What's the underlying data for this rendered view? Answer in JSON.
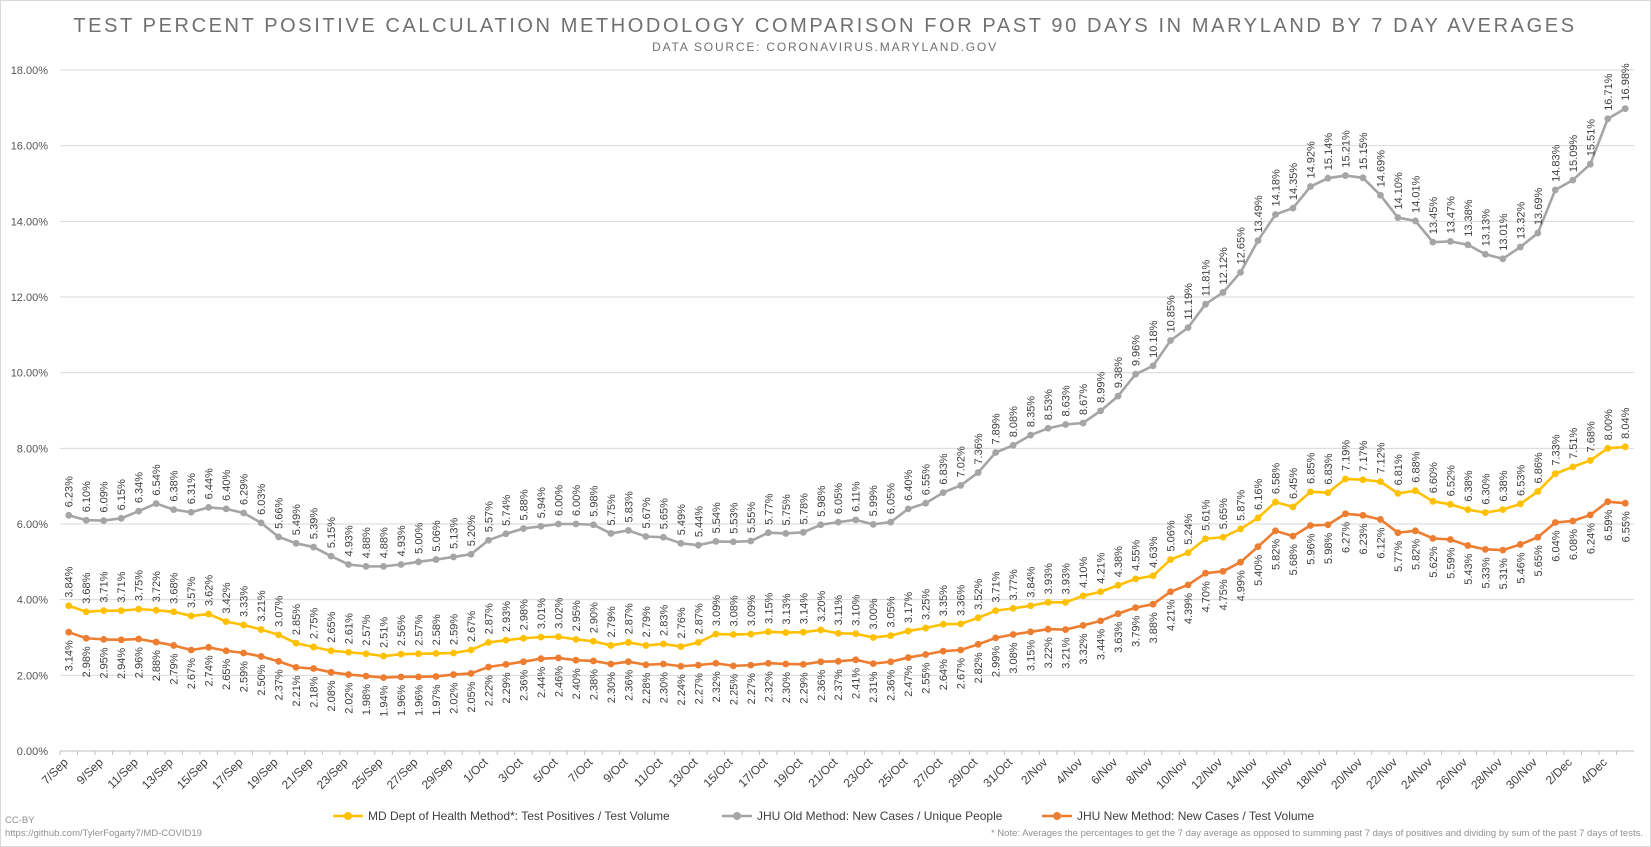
{
  "chart_data": {
    "type": "line",
    "title": "TEST PERCENT POSITIVE CALCULATION METHODOLOGY COMPARISON FOR PAST 90 DAYS IN MARYLAND BY 7 DAY AVERAGES",
    "subtitle": "DATA SOURCE: CORONAVIRUS.MARYLAND.GOV",
    "ylim": [
      0,
      18
    ],
    "yticks": [
      "0.00%",
      "2.00%",
      "4.00%",
      "6.00%",
      "8.00%",
      "10.00%",
      "12.00%",
      "14.00%",
      "16.00%",
      "18.00%"
    ],
    "grid": true,
    "legend_position": "bottom",
    "x_tick_labels": [
      "7/Sep",
      "9/Sep",
      "11/Sep",
      "13/Sep",
      "15/Sep",
      "17/Sep",
      "19/Sep",
      "21/Sep",
      "23/Sep",
      "25/Sep",
      "27/Sep",
      "29/Sep",
      "1/Oct",
      "3/Oct",
      "5/Oct",
      "7/Oct",
      "9/Oct",
      "11/Oct",
      "13/Oct",
      "15/Oct",
      "17/Oct",
      "19/Oct",
      "21/Oct",
      "23/Oct",
      "25/Oct",
      "27/Oct",
      "29/Oct",
      "31/Oct",
      "2/Nov",
      "4/Nov",
      "6/Nov",
      "8/Nov",
      "10/Nov",
      "12/Nov",
      "14/Nov",
      "16/Nov",
      "18/Nov",
      "20/Nov",
      "22/Nov",
      "24/Nov",
      "26/Nov",
      "28/Nov",
      "30/Nov",
      "2/Dec",
      "4/Dec"
    ],
    "series": [
      {
        "name": "MD Dept of Health Method*: Test Positives / Test Volume",
        "color": "#FFC000",
        "labels": [
          "3.84%",
          "3.68%",
          "3.71%",
          "3.71%",
          "3.75%",
          "3.72%",
          "3.68%",
          "3.57%",
          "3.62%",
          "3.42%",
          "3.33%",
          "3.21%",
          "3.07%",
          "2.85%",
          "2.75%",
          "2.65%",
          "2.61%",
          "2.57%",
          "2.51%",
          "2.56%",
          "2.57%",
          "2.58%",
          "2.59%",
          "2.67%",
          "2.87%",
          "2.93%",
          "2.98%",
          "3.01%",
          "3.02%",
          "2.95%",
          "2.90%",
          "2.79%",
          "2.87%",
          "2.79%",
          "2.83%",
          "2.76%",
          "2.87%",
          "3.09%",
          "3.08%",
          "3.09%",
          "3.15%",
          "3.13%",
          "3.14%",
          "3.20%",
          "3.11%",
          "3.10%",
          "3.00%",
          "3.05%",
          "3.17%",
          "3.25%",
          "3.35%",
          "3.36%",
          "3.52%",
          "3.71%",
          "3.77%",
          "3.84%",
          "3.93%",
          "3.93%",
          "4.10%",
          "4.21%",
          "4.38%",
          "4.55%",
          "4.63%",
          "5.06%",
          "5.24%",
          "5.61%",
          "5.65%",
          "5.87%",
          "6.16%",
          "6.58%",
          "6.45%",
          "6.85%",
          "6.83%",
          "7.19%",
          "7.17%",
          "7.12%",
          "6.81%",
          "6.88%",
          "6.60%",
          "6.52%",
          "6.38%",
          "6.30%",
          "6.38%",
          "6.53%",
          "6.86%",
          "7.33%",
          "7.51%",
          "7.68%",
          "8.00%",
          "8.04%"
        ]
      },
      {
        "name": "JHU Old Method: New Cases / Unique People",
        "color": "#A5A5A5",
        "labels": [
          "6.23%",
          "6.10%",
          "6.09%",
          "6.15%",
          "6.34%",
          "6.54%",
          "6.38%",
          "6.31%",
          "6.44%",
          "6.40%",
          "6.29%",
          "6.03%",
          "5.66%",
          "5.49%",
          "5.39%",
          "5.15%",
          "4.93%",
          "4.88%",
          "4.88%",
          "4.93%",
          "5.00%",
          "5.06%",
          "5.13%",
          "5.20%",
          "5.57%",
          "5.74%",
          "5.88%",
          "5.94%",
          "6.00%",
          "6.00%",
          "5.98%",
          "5.75%",
          "5.83%",
          "5.67%",
          "5.65%",
          "5.49%",
          "5.44%",
          "5.54%",
          "5.53%",
          "5.55%",
          "5.77%",
          "5.75%",
          "5.78%",
          "5.98%",
          "6.05%",
          "6.11%",
          "5.99%",
          "6.05%",
          "6.40%",
          "6.55%",
          "6.83%",
          "7.02%",
          "7.36%",
          "7.89%",
          "8.08%",
          "8.35%",
          "8.53%",
          "8.63%",
          "8.67%",
          "8.99%",
          "9.38%",
          "9.96%",
          "10.18%",
          "10.85%",
          "11.19%",
          "11.81%",
          "12.12%",
          "12.65%",
          "13.49%",
          "14.18%",
          "14.35%",
          "14.92%",
          "15.14%",
          "15.21%",
          "15.15%",
          "14.69%",
          "14.10%",
          "14.01%",
          "13.45%",
          "13.47%",
          "13.38%",
          "13.13%",
          "13.01%",
          "13.32%",
          "13.69%",
          "14.83%",
          "15.09%",
          "15.51%",
          "16.71%",
          "16.98%"
        ]
      },
      {
        "name": "JHU New Method: New Cases / Test Volume",
        "color": "#ED7D31",
        "labels": [
          "3.14%",
          "2.98%",
          "2.95%",
          "2.94%",
          "2.96%",
          "2.88%",
          "2.79%",
          "2.67%",
          "2.74%",
          "2.65%",
          "2.59%",
          "2.50%",
          "2.37%",
          "2.21%",
          "2.18%",
          "2.08%",
          "2.02%",
          "1.98%",
          "1.94%",
          "1.96%",
          "1.96%",
          "1.97%",
          "2.02%",
          "2.05%",
          "2.22%",
          "2.29%",
          "2.36%",
          "2.44%",
          "2.46%",
          "2.40%",
          "2.38%",
          "2.30%",
          "2.36%",
          "2.28%",
          "2.30%",
          "2.24%",
          "2.27%",
          "2.32%",
          "2.25%",
          "2.27%",
          "2.32%",
          "2.30%",
          "2.29%",
          "2.36%",
          "2.37%",
          "2.41%",
          "2.31%",
          "2.36%",
          "2.47%",
          "2.55%",
          "2.64%",
          "2.67%",
          "2.82%",
          "2.99%",
          "3.08%",
          "3.15%",
          "3.22%",
          "3.21%",
          "3.32%",
          "3.44%",
          "3.63%",
          "3.79%",
          "3.88%",
          "4.21%",
          "4.39%",
          "4.70%",
          "4.75%",
          "4.99%",
          "5.40%",
          "5.82%",
          "5.68%",
          "5.96%",
          "5.98%",
          "6.27%",
          "6.23%",
          "6.12%",
          "5.77%",
          "5.82%",
          "5.62%",
          "5.59%",
          "5.43%",
          "5.33%",
          "5.31%",
          "5.46%",
          "5.65%",
          "6.04%",
          "6.08%",
          "6.24%",
          "6.59%",
          "6.55%"
        ]
      }
    ]
  },
  "footer": {
    "license": "CC-BY",
    "url": "https://github.com/TylerFogarty7/MD-COVID19",
    "note": "* Note: Averages the percentages to get the 7 day average as opposed to summing past 7 days of positives and dividing by sum of the past 7 days of tests."
  }
}
